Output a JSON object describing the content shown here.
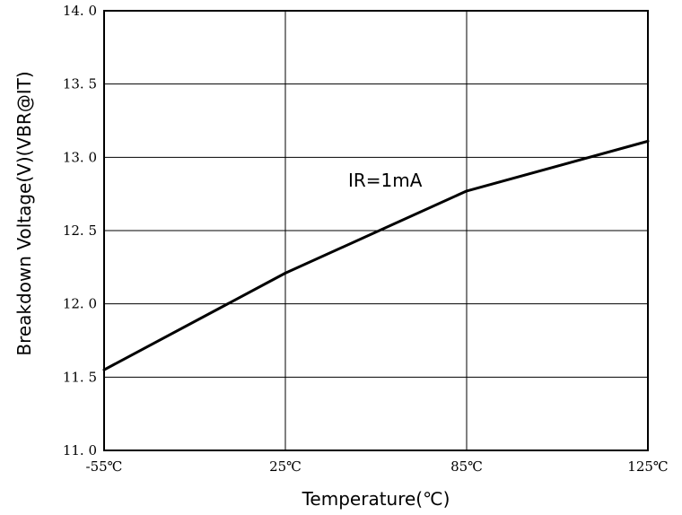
{
  "chart_data": {
    "type": "line",
    "xlabel": "Temperature(℃)",
    "ylabel": "Breakdown Voltage(V)(VBR@IT)",
    "x_tick_labels": [
      "-55℃",
      "25℃",
      "85℃",
      "125℃"
    ],
    "y_tick_labels": [
      "11. 0",
      "11. 5",
      "12. 0",
      "12. 5",
      "13. 0",
      "13. 5",
      "14. 0"
    ],
    "y_ticks": [
      11.0,
      11.5,
      12.0,
      12.5,
      13.0,
      13.5,
      14.0
    ],
    "ylim": [
      11.0,
      14.0
    ],
    "grid": true,
    "annotation": "IR=1mA",
    "series": [
      {
        "x": [
          "-55℃",
          "25℃",
          "85℃",
          "125℃"
        ],
        "values": [
          11.55,
          12.21,
          12.77,
          13.11
        ],
        "color": "#000000"
      }
    ]
  }
}
